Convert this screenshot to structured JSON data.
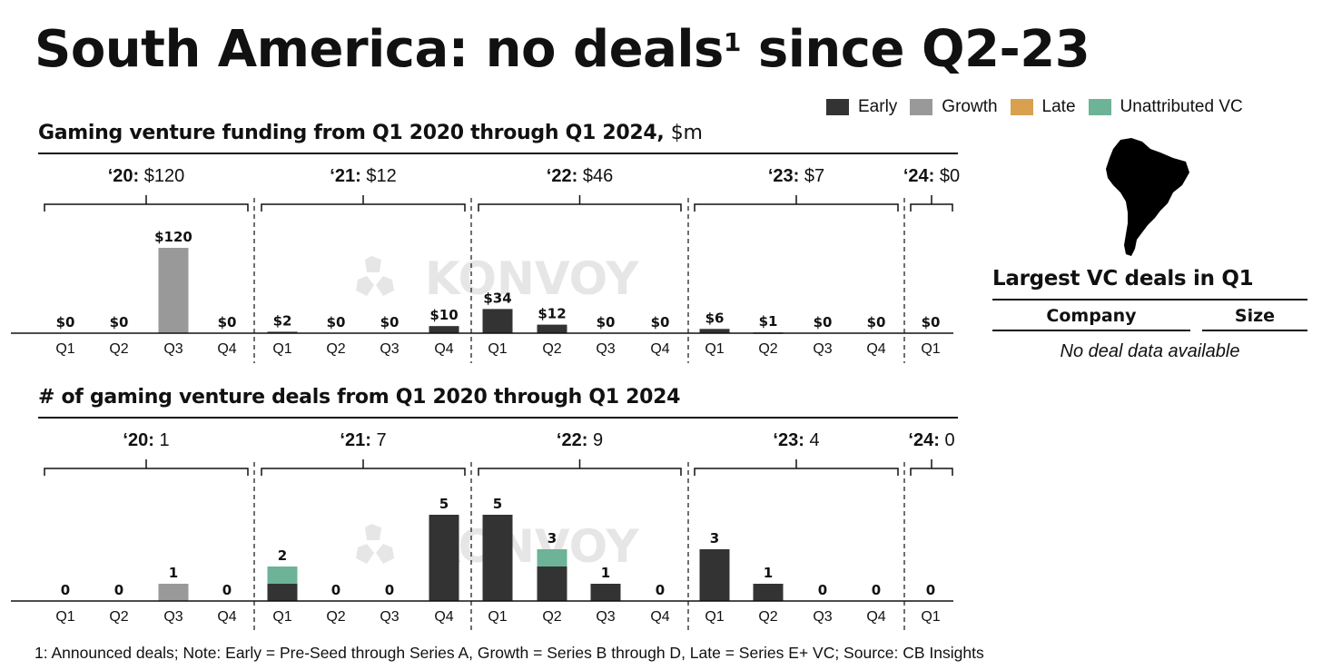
{
  "title": {
    "main": "South America: no deals",
    "sup": "1",
    "rest": " since Q2-23"
  },
  "legend": [
    {
      "label": "Early",
      "color": "#333333"
    },
    {
      "label": "Growth",
      "color": "#999999"
    },
    {
      "label": "Late",
      "color": "#D9A050"
    },
    {
      "label": "Unattributed VC",
      "color": "#6DB397"
    }
  ],
  "watermark": "KONVOY",
  "side_panel": {
    "map_label": "South America",
    "title": "Largest VC deals in Q1",
    "columns": [
      "Company",
      "Size"
    ],
    "empty_text": "No deal data available"
  },
  "footnote": "1: Announced deals; Note: Early = Pre-Seed through Series A, Growth = Series B through D, Late = Series E+ VC; Source: CB Insights",
  "chart_data": [
    {
      "type": "bar",
      "stacked": true,
      "title": "Gaming venture funding from Q1 2020 through Q1 2024,",
      "title_unit": "$m",
      "xlabel": "",
      "ylabel": "",
      "ylim": [
        0,
        120
      ],
      "year_groups": [
        {
          "year": "‘20:",
          "total": "$120",
          "quarters": [
            "Q1",
            "Q2",
            "Q3",
            "Q4"
          ]
        },
        {
          "year": "‘21:",
          "total": "$12",
          "quarters": [
            "Q1",
            "Q2",
            "Q3",
            "Q4"
          ]
        },
        {
          "year": "‘22:",
          "total": "$46",
          "quarters": [
            "Q1",
            "Q2",
            "Q3",
            "Q4"
          ]
        },
        {
          "year": "‘23:",
          "total": "$7",
          "quarters": [
            "Q1",
            "Q2",
            "Q3",
            "Q4"
          ]
        },
        {
          "year": "‘24:",
          "total": "$0",
          "quarters": [
            "Q1"
          ]
        }
      ],
      "categories": [
        "Q1-20",
        "Q2-20",
        "Q3-20",
        "Q4-20",
        "Q1-21",
        "Q2-21",
        "Q3-21",
        "Q4-21",
        "Q1-22",
        "Q2-22",
        "Q3-22",
        "Q4-22",
        "Q1-23",
        "Q2-23",
        "Q3-23",
        "Q4-23",
        "Q1-24"
      ],
      "labels": [
        "$0",
        "$0",
        "$120",
        "$0",
        "$2",
        "$0",
        "$0",
        "$10",
        "$34",
        "$12",
        "$0",
        "$0",
        "$6",
        "$1",
        "$0",
        "$0",
        "$0"
      ],
      "series": [
        {
          "name": "Early",
          "values": [
            0,
            0,
            0,
            0,
            2,
            0,
            0,
            10,
            34,
            12,
            0,
            0,
            6,
            1,
            0,
            0,
            0
          ]
        },
        {
          "name": "Growth",
          "values": [
            0,
            0,
            120,
            0,
            0,
            0,
            0,
            0,
            0,
            0,
            0,
            0,
            0,
            0,
            0,
            0,
            0
          ]
        },
        {
          "name": "Late",
          "values": [
            0,
            0,
            0,
            0,
            0,
            0,
            0,
            0,
            0,
            0,
            0,
            0,
            0,
            0,
            0,
            0,
            0
          ]
        },
        {
          "name": "Unattributed VC",
          "values": [
            0,
            0,
            0,
            0,
            0,
            0,
            0,
            0,
            0,
            0,
            0,
            0,
            0,
            0,
            0,
            0,
            0
          ]
        }
      ]
    },
    {
      "type": "bar",
      "stacked": true,
      "title": "# of gaming venture deals from Q1 2020 through Q1 2024",
      "title_unit": "",
      "xlabel": "",
      "ylabel": "",
      "ylim": [
        0,
        5
      ],
      "year_groups": [
        {
          "year": "‘20:",
          "total": "1",
          "quarters": [
            "Q1",
            "Q2",
            "Q3",
            "Q4"
          ]
        },
        {
          "year": "‘21:",
          "total": "7",
          "quarters": [
            "Q1",
            "Q2",
            "Q3",
            "Q4"
          ]
        },
        {
          "year": "‘22:",
          "total": "9",
          "quarters": [
            "Q1",
            "Q2",
            "Q3",
            "Q4"
          ]
        },
        {
          "year": "‘23:",
          "total": "4",
          "quarters": [
            "Q1",
            "Q2",
            "Q3",
            "Q4"
          ]
        },
        {
          "year": "‘24:",
          "total": "0",
          "quarters": [
            "Q1"
          ]
        }
      ],
      "categories": [
        "Q1-20",
        "Q2-20",
        "Q3-20",
        "Q4-20",
        "Q1-21",
        "Q2-21",
        "Q3-21",
        "Q4-21",
        "Q1-22",
        "Q2-22",
        "Q3-22",
        "Q4-22",
        "Q1-23",
        "Q2-23",
        "Q3-23",
        "Q4-23",
        "Q1-24"
      ],
      "labels": [
        "0",
        "0",
        "1",
        "0",
        "2",
        "0",
        "0",
        "5",
        "5",
        "3",
        "1",
        "0",
        "3",
        "1",
        "0",
        "0",
        "0"
      ],
      "series": [
        {
          "name": "Early",
          "values": [
            0,
            0,
            0,
            0,
            1,
            0,
            0,
            5,
            5,
            2,
            1,
            0,
            3,
            1,
            0,
            0,
            0
          ]
        },
        {
          "name": "Growth",
          "values": [
            0,
            0,
            1,
            0,
            0,
            0,
            0,
            0,
            0,
            0,
            0,
            0,
            0,
            0,
            0,
            0,
            0
          ]
        },
        {
          "name": "Late",
          "values": [
            0,
            0,
            0,
            0,
            0,
            0,
            0,
            0,
            0,
            0,
            0,
            0,
            0,
            0,
            0,
            0,
            0
          ]
        },
        {
          "name": "Unattributed VC",
          "values": [
            0,
            0,
            0,
            0,
            1,
            0,
            0,
            0,
            0,
            1,
            0,
            0,
            0,
            0,
            0,
            0,
            0
          ]
        }
      ]
    }
  ]
}
